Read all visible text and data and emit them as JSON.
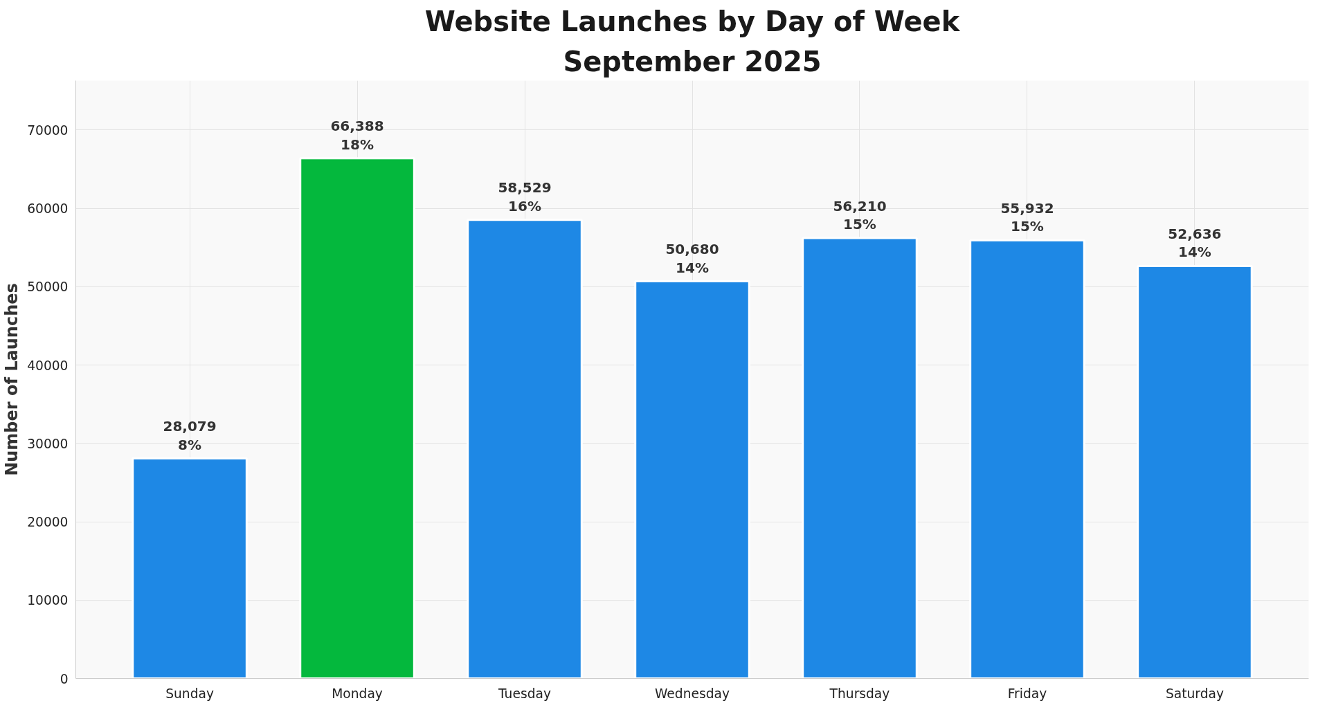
{
  "chart_data": {
    "type": "bar",
    "title": "Website Launches by Day of Week",
    "subtitle": "September 2025",
    "ylabel": "Number of Launches",
    "categories": [
      "Sunday",
      "Monday",
      "Tuesday",
      "Wednesday",
      "Thursday",
      "Friday",
      "Saturday"
    ],
    "values": [
      28079,
      66388,
      58529,
      50680,
      56210,
      55932,
      52636
    ],
    "colors": [
      "#1e88e5",
      "#04b83d",
      "#1e88e5",
      "#1e88e5",
      "#1e88e5",
      "#1e88e5",
      "#1e88e5"
    ],
    "value_labels": [
      "28,079\n8%",
      "66,388\n18%",
      "58,529\n16%",
      "50,680\n14%",
      "56,210\n15%",
      "55,932\n15%",
      "52,636\n14%"
    ],
    "ylim": [
      0,
      76300
    ],
    "yticks": [
      0,
      10000,
      20000,
      30000,
      40000,
      50000,
      60000,
      70000
    ],
    "grid": true
  }
}
